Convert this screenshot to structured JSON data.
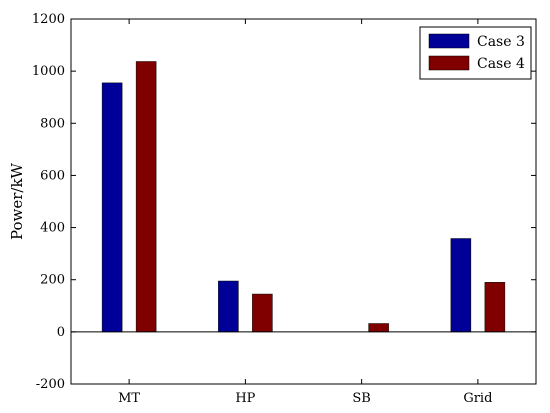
{
  "chart_data": {
    "type": "bar",
    "categories": [
      "MT",
      "HP",
      "SB",
      "Grid"
    ],
    "series": [
      {
        "name": "Case 3",
        "values": [
          955,
          195,
          0,
          358
        ],
        "color": "#000099"
      },
      {
        "name": "Case 4",
        "values": [
          1037,
          145,
          32,
          190
        ],
        "color": "#800000"
      }
    ],
    "title": "",
    "xlabel": "",
    "ylabel": "Power/kW",
    "ylim": [
      -200,
      1200
    ],
    "yticks": [
      "-200",
      "0",
      "200",
      "400",
      "600",
      "800",
      "1000",
      "1200"
    ],
    "grid": false,
    "legend_position": "top-right"
  }
}
